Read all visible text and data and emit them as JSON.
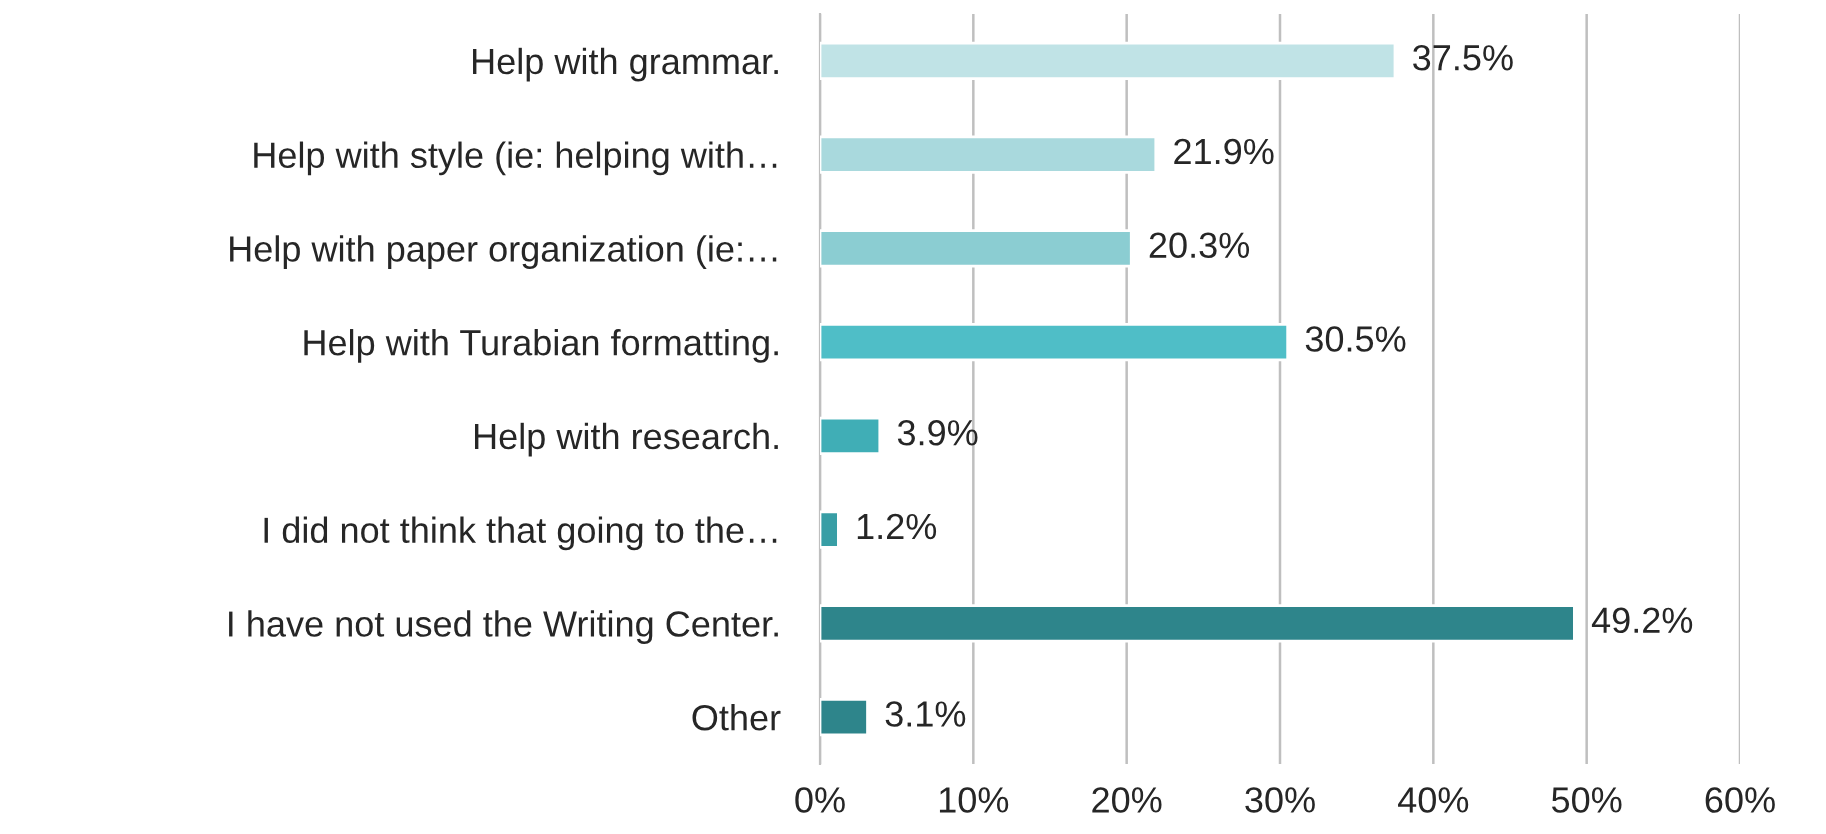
{
  "chart_data": {
    "type": "bar",
    "orientation": "horizontal",
    "categories": [
      "Help with grammar.",
      "Help with style (ie: helping with…",
      "Help with paper organization (ie:…",
      "Help with Turabian formatting.",
      "Help with research.",
      "I did not think that going to the…",
      "I have not used the Writing Center.",
      "Other"
    ],
    "values": [
      37.5,
      21.9,
      20.3,
      30.5,
      3.9,
      1.2,
      49.2,
      3.1
    ],
    "colors": [
      "#c0e3e6",
      "#a9d9dd",
      "#8bcdd2",
      "#4fbec7",
      "#40aeb6",
      "#389ea5",
      "#2e858b",
      "#2e858b"
    ],
    "value_labels": [
      "37.5%",
      "21.9%",
      "20.3%",
      "30.5%",
      "3.9%",
      "1.2%",
      "49.2%",
      "3.1%"
    ],
    "xlim": [
      0,
      60
    ],
    "xticks": [
      {
        "value": 0,
        "label": "0%"
      },
      {
        "value": 10,
        "label": "10%"
      },
      {
        "value": 20,
        "label": "20%"
      },
      {
        "value": 30,
        "label": "30%"
      },
      {
        "value": 40,
        "label": "40%"
      },
      {
        "value": 50,
        "label": "50%"
      },
      {
        "value": 60,
        "label": "60%"
      }
    ],
    "grid": "x",
    "legend": false
  }
}
